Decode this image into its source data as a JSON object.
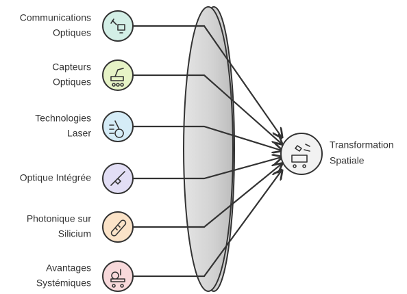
{
  "nodes": [
    {
      "label": [
        "Communications",
        "Optiques"
      ],
      "color": "#d3efe6"
    },
    {
      "label": [
        "Capteurs",
        "Optiques"
      ],
      "color": "#e6f3c6"
    },
    {
      "label": [
        "Technologies",
        "Laser"
      ],
      "color": "#d5ecf7"
    },
    {
      "label": [
        "Optique Intégrée"
      ],
      "color": "#e2def5"
    },
    {
      "label": [
        "Photonique sur",
        "Silicium"
      ],
      "color": "#fbe3c8"
    },
    {
      "label": [
        "Avantages",
        "Systémiques"
      ],
      "color": "#f8d9db"
    }
  ],
  "target": {
    "label": [
      "Transformation",
      "Spatiale"
    ],
    "color": "#f2f2f2"
  }
}
